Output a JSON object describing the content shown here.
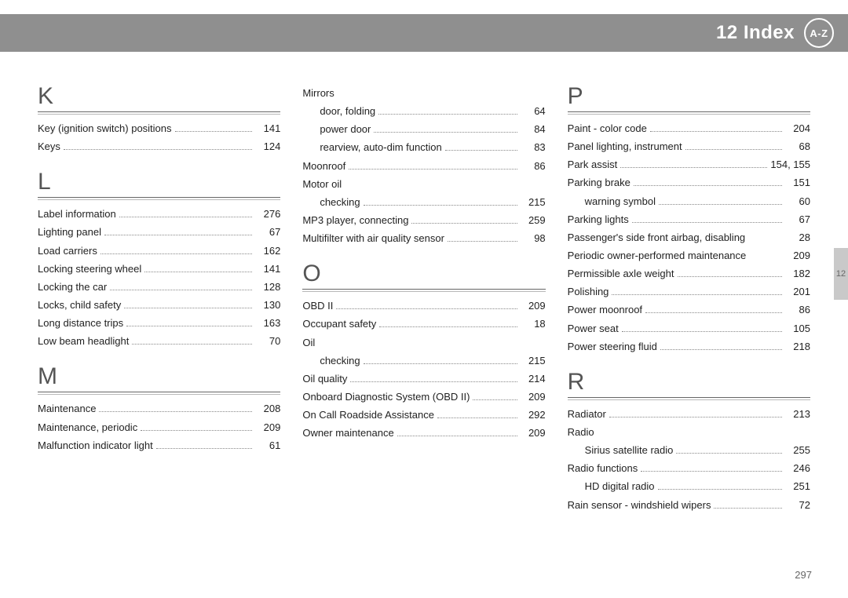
{
  "header": {
    "chapter": "12 Index",
    "badge": "A-Z"
  },
  "side_tab": "12",
  "page_number": "297",
  "columns": [
    [
      {
        "type": "letter",
        "text": "K"
      },
      {
        "type": "entry",
        "text": "Key (ignition switch) positions",
        "page": "141"
      },
      {
        "type": "entry",
        "text": "Keys",
        "page": "124"
      },
      {
        "type": "letter",
        "text": "L"
      },
      {
        "type": "entry",
        "text": "Label information",
        "page": "276"
      },
      {
        "type": "entry",
        "text": "Lighting panel",
        "page": "67"
      },
      {
        "type": "entry",
        "text": "Load carriers",
        "page": "162"
      },
      {
        "type": "entry",
        "text": "Locking steering wheel",
        "page": "141"
      },
      {
        "type": "entry",
        "text": "Locking the car",
        "page": "128"
      },
      {
        "type": "entry",
        "text": "Locks, child safety",
        "page": "130"
      },
      {
        "type": "entry",
        "text": "Long distance trips",
        "page": "163"
      },
      {
        "type": "entry",
        "text": "Low beam headlight",
        "page": "70"
      },
      {
        "type": "letter",
        "text": "M"
      },
      {
        "type": "entry",
        "text": "Maintenance",
        "page": "208"
      },
      {
        "type": "entry",
        "text": "Maintenance, periodic",
        "page": "209"
      },
      {
        "type": "entry",
        "text": "Malfunction indicator light",
        "page": "61"
      }
    ],
    [
      {
        "type": "entry",
        "text": "Mirrors",
        "page": ""
      },
      {
        "type": "sub",
        "text": "door, folding",
        "page": "64"
      },
      {
        "type": "sub",
        "text": "power door",
        "page": "84"
      },
      {
        "type": "sub",
        "text": "rearview, auto-dim function",
        "page": "83"
      },
      {
        "type": "entry",
        "text": "Moonroof",
        "page": "86"
      },
      {
        "type": "entry",
        "text": "Motor oil",
        "page": ""
      },
      {
        "type": "sub",
        "text": "checking",
        "page": "215"
      },
      {
        "type": "entry",
        "text": "MP3 player, connecting",
        "page": "259"
      },
      {
        "type": "entry",
        "text": "Multifilter with air quality sensor",
        "page": "98"
      },
      {
        "type": "letter",
        "text": "O"
      },
      {
        "type": "entry",
        "text": "OBD II",
        "page": "209"
      },
      {
        "type": "entry",
        "text": "Occupant safety",
        "page": "18"
      },
      {
        "type": "entry",
        "text": "Oil",
        "page": ""
      },
      {
        "type": "sub",
        "text": "checking",
        "page": "215"
      },
      {
        "type": "entry",
        "text": "Oil quality",
        "page": "214"
      },
      {
        "type": "entry",
        "text": "Onboard Diagnostic System (OBD II)",
        "page": "209"
      },
      {
        "type": "entry",
        "text": "On Call Roadside Assistance",
        "page": "292"
      },
      {
        "type": "entry",
        "text": "Owner maintenance",
        "page": "209"
      }
    ],
    [
      {
        "type": "letter",
        "text": "P"
      },
      {
        "type": "entry",
        "text": "Paint - color code",
        "page": "204"
      },
      {
        "type": "entry",
        "text": "Panel lighting, instrument",
        "page": "68"
      },
      {
        "type": "entry",
        "text": "Park assist",
        "page": "154, 155"
      },
      {
        "type": "entry",
        "text": "Parking brake",
        "page": "151"
      },
      {
        "type": "sub",
        "text": "warning symbol",
        "page": "60"
      },
      {
        "type": "entry",
        "text": "Parking lights",
        "page": "67"
      },
      {
        "type": "entry",
        "text": "Passenger's side front airbag, disabling",
        "page": "28",
        "nodots": true
      },
      {
        "type": "entry",
        "text": "Periodic owner-performed maintenance",
        "page": "209",
        "nodots": true
      },
      {
        "type": "entry",
        "text": "Permissible axle weight",
        "page": "182"
      },
      {
        "type": "entry",
        "text": "Polishing",
        "page": "201"
      },
      {
        "type": "entry",
        "text": "Power moonroof",
        "page": "86"
      },
      {
        "type": "entry",
        "text": "Power seat",
        "page": "105"
      },
      {
        "type": "entry",
        "text": "Power steering fluid",
        "page": "218"
      },
      {
        "type": "letter",
        "text": "R"
      },
      {
        "type": "entry",
        "text": "Radiator",
        "page": "213"
      },
      {
        "type": "entry",
        "text": "Radio",
        "page": ""
      },
      {
        "type": "sub",
        "text": "Sirius satellite radio",
        "page": "255"
      },
      {
        "type": "entry",
        "text": "Radio functions",
        "page": "246"
      },
      {
        "type": "sub",
        "text": "HD digital radio",
        "page": "251"
      },
      {
        "type": "entry",
        "text": "Rain sensor - windshield wipers",
        "page": "72"
      }
    ]
  ]
}
